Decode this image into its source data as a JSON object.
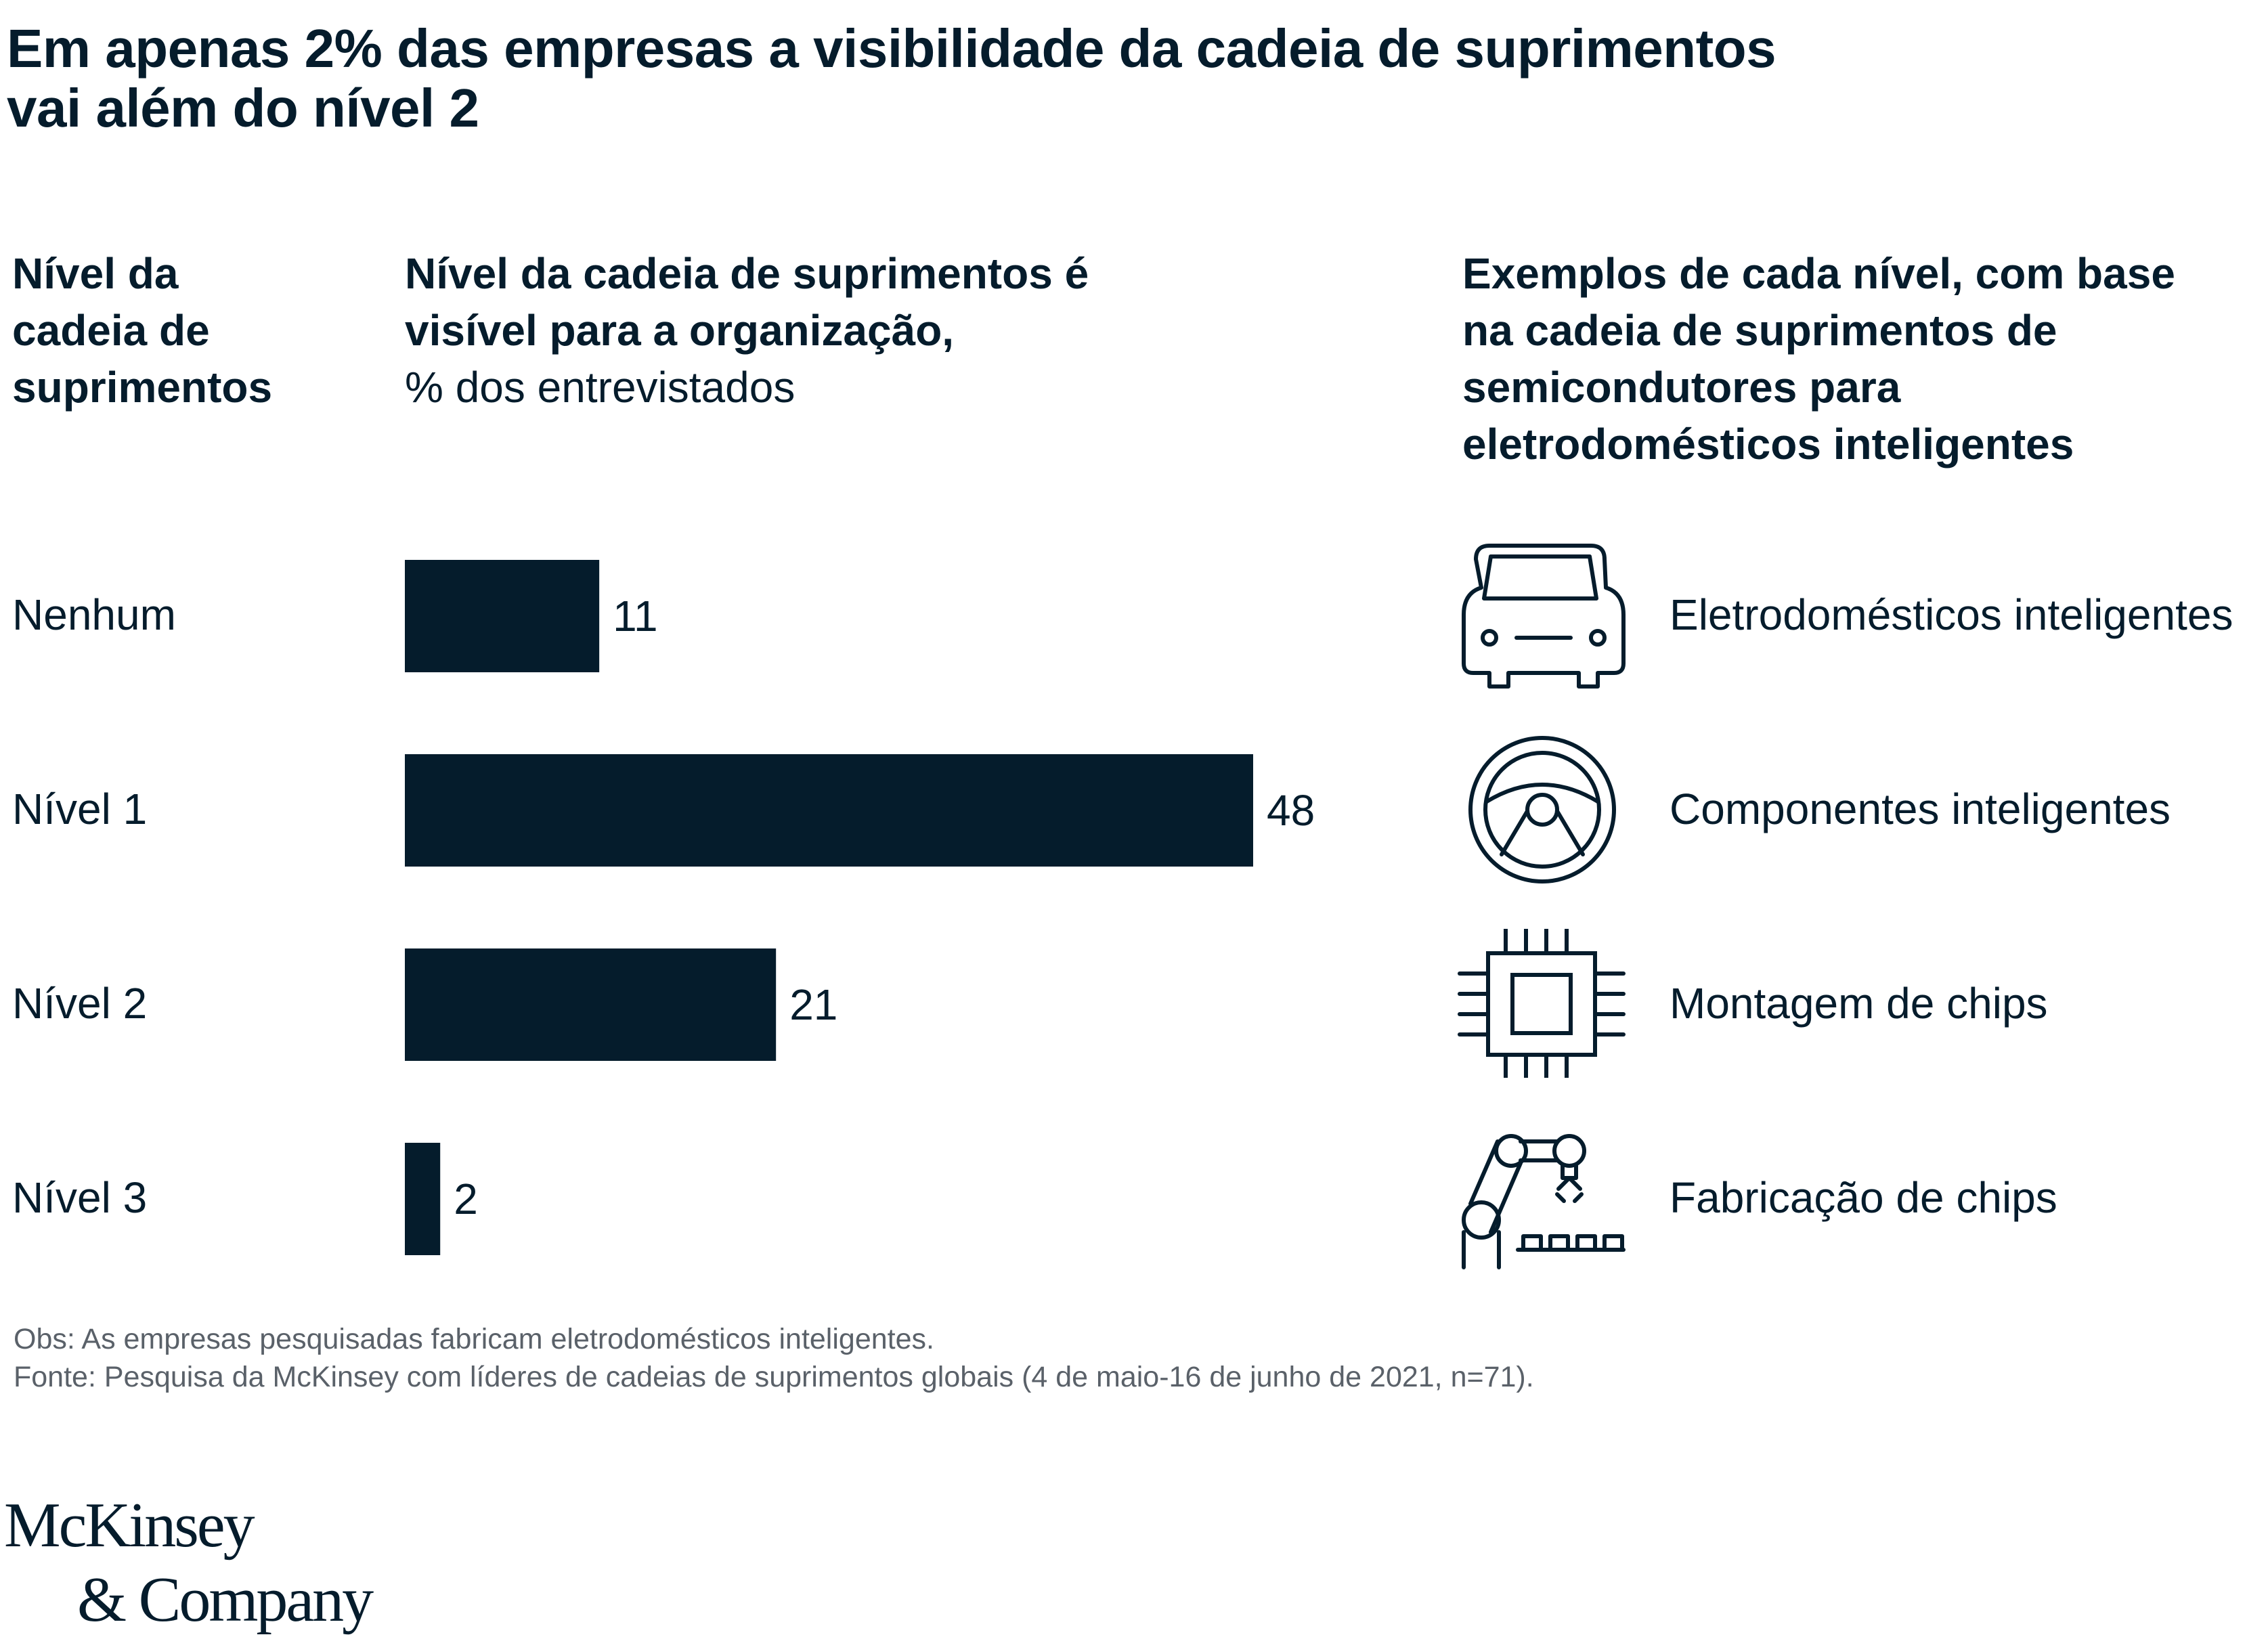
{
  "title": {
    "line1": "Em apenas 2% das empresas a visibilidade da cadeia de suprimentos",
    "line2": "vai além do nível 2"
  },
  "headers": {
    "level": [
      "Nível da",
      "cadeia de",
      "suprimentos"
    ],
    "bars_bold": [
      "Nível da cadeia de suprimentos é",
      "visível para a organização,"
    ],
    "bars_unit": "% dos entrevistados",
    "examples": [
      "Exemplos de cada nível, com base",
      "na cadeia de suprimentos de",
      "semicondutores para",
      "eletrodomésticos inteligentes"
    ]
  },
  "rows": [
    {
      "label": "Nenhum",
      "example": "Eletrodomésticos inteligentes",
      "icon": "car-icon"
    },
    {
      "label": "Nível 1",
      "example": "Componentes inteligentes",
      "icon": "steering-wheel-icon"
    },
    {
      "label": "Nível 2",
      "example": "Montagem de chips",
      "icon": "chip-icon"
    },
    {
      "label": "Nível 3",
      "example": "Fabricação de chips",
      "icon": "robot-arm-icon"
    }
  ],
  "chart_data": {
    "type": "bar",
    "orientation": "horizontal",
    "title": "Nível da cadeia de suprimentos é visível para a organização, % dos entrevistados",
    "categories": [
      "Nenhum",
      "Nível 1",
      "Nível 2",
      "Nível 3"
    ],
    "values": [
      11,
      48,
      21,
      2
    ],
    "xlim": [
      0,
      48
    ],
    "grid": false,
    "bar_color": "#051c2c"
  },
  "notes": {
    "obs": "Obs: As empresas pesquisadas fabricam eletrodomésticos inteligentes.",
    "source": "Fonte: Pesquisa da McKinsey com líderes de cadeias de suprimentos globais (4 de maio-16 de junho de 2021, n=71)."
  },
  "logo": {
    "line1": "McKinsey",
    "line2": "& Company"
  },
  "colors": {
    "ink": "#051c2c",
    "note": "#5a6169"
  }
}
